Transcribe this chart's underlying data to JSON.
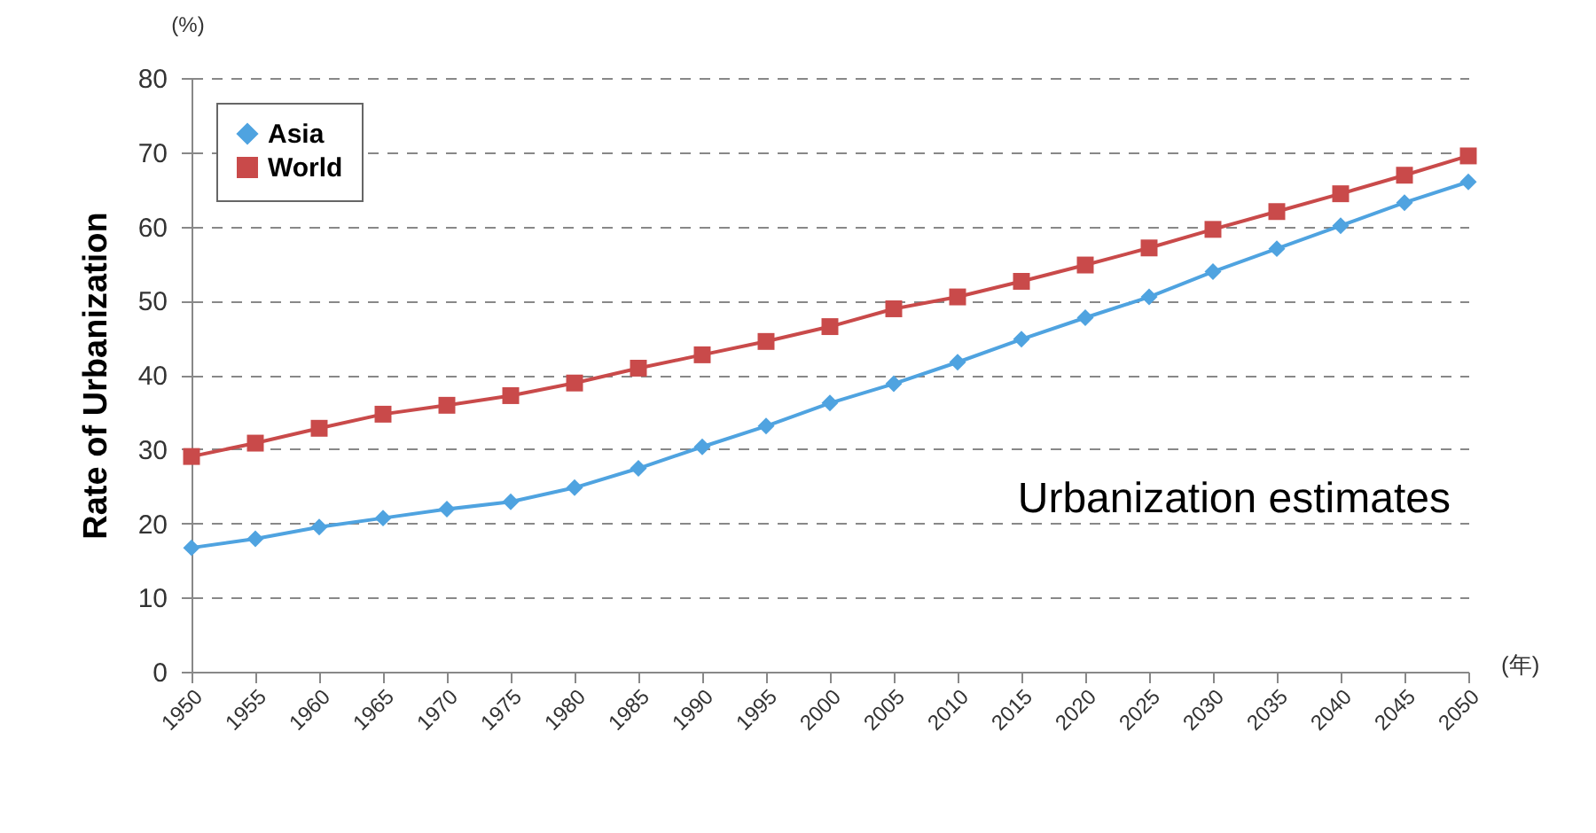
{
  "chart_data": {
    "type": "line",
    "ylabel": "Rate of Urbanization",
    "xlabel": "(年)",
    "annotations": [
      "(%)",
      "Urbanization estimates"
    ],
    "x": [
      1950,
      1955,
      1960,
      1965,
      1970,
      1975,
      1980,
      1985,
      1990,
      1995,
      2000,
      2005,
      2010,
      2015,
      2020,
      2025,
      2030,
      2035,
      2040,
      2045,
      2050
    ],
    "series": [
      {
        "name": "Asia",
        "color": "#4fa3e0",
        "marker": "diamond",
        "values": [
          16.7,
          17.9,
          19.5,
          20.7,
          21.9,
          22.9,
          24.8,
          27.4,
          30.3,
          33.1,
          36.2,
          38.8,
          41.7,
          44.8,
          47.7,
          50.5,
          53.9,
          57.0,
          60.1,
          63.2,
          66.0
        ]
      },
      {
        "name": "World",
        "color": "#c94a4a",
        "marker": "square",
        "values": [
          29.0,
          30.8,
          32.8,
          34.7,
          35.9,
          37.2,
          38.9,
          40.9,
          42.7,
          44.5,
          46.5,
          48.9,
          50.5,
          52.6,
          54.8,
          57.1,
          59.6,
          62.0,
          64.4,
          66.9,
          69.5
        ]
      }
    ],
    "xlim": [
      1950,
      2050
    ],
    "xticks": [
      1950,
      1955,
      1960,
      1965,
      1970,
      1975,
      1980,
      1985,
      1990,
      1995,
      2000,
      2005,
      2010,
      2015,
      2020,
      2025,
      2030,
      2035,
      2040,
      2045,
      2050
    ],
    "ylim": [
      0,
      80
    ],
    "yticks": [
      0,
      10,
      20,
      30,
      40,
      50,
      60,
      70,
      80
    ],
    "grid": "y",
    "legend": "top left"
  }
}
